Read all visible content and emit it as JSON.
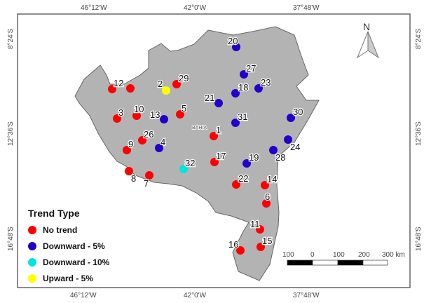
{
  "map": {
    "region_label": "BAHIA",
    "north_label": "N",
    "ticks": {
      "top": [
        "46°12'W",
        "42°0'W",
        "37°48'W"
      ],
      "bottom": [
        "46°12'W",
        "42°0'W",
        "37°48'W"
      ],
      "left": [
        "8°24'S",
        "12°36'S",
        "16°48'S"
      ],
      "right": [
        "8°24'S",
        "12°36'S",
        "16°48'S"
      ]
    },
    "scale_bar": {
      "labels": [
        "100",
        "0",
        "100",
        "200",
        "300 km"
      ]
    }
  },
  "legend": {
    "title": "Trend Type",
    "items": [
      {
        "key": "none",
        "label": "No trend",
        "color": "#ff0000"
      },
      {
        "key": "down5",
        "label": "Downward - 5%",
        "color": "#2200cc"
      },
      {
        "key": "down10",
        "label": "Downward - 10%",
        "color": "#00e5e0"
      },
      {
        "key": "up5",
        "label": "Upward - 5%",
        "color": "#ffff00"
      }
    ]
  },
  "stations": [
    {
      "id": "1",
      "trend": "none"
    },
    {
      "id": "2",
      "trend": "up5"
    },
    {
      "id": "3",
      "trend": "none"
    },
    {
      "id": "4",
      "trend": "down5"
    },
    {
      "id": "5",
      "trend": "none"
    },
    {
      "id": "6",
      "trend": "none"
    },
    {
      "id": "7",
      "trend": "none"
    },
    {
      "id": "8",
      "trend": "none"
    },
    {
      "id": "9",
      "trend": "none"
    },
    {
      "id": "10",
      "trend": "none"
    },
    {
      "id": "11",
      "trend": "none"
    },
    {
      "id": "12",
      "trend": "none"
    },
    {
      "id": "",
      "trend": "none"
    },
    {
      "id": "13",
      "trend": "down5"
    },
    {
      "id": "14",
      "trend": "none"
    },
    {
      "id": "15",
      "trend": "none"
    },
    {
      "id": "16",
      "trend": "none"
    },
    {
      "id": "17",
      "trend": "none"
    },
    {
      "id": "18",
      "trend": "down5"
    },
    {
      "id": "19",
      "trend": "down5"
    },
    {
      "id": "20",
      "trend": "down5"
    },
    {
      "id": "21",
      "trend": "down5"
    },
    {
      "id": "22",
      "trend": "none"
    },
    {
      "id": "23",
      "trend": "down5"
    },
    {
      "id": "24",
      "trend": "down5"
    },
    {
      "id": "26",
      "trend": "none"
    },
    {
      "id": "27",
      "trend": "down5"
    },
    {
      "id": "28",
      "trend": "down5"
    },
    {
      "id": "29",
      "trend": "none"
    },
    {
      "id": "30",
      "trend": "down5"
    },
    {
      "id": "31",
      "trend": "down5"
    },
    {
      "id": "32",
      "trend": "down10"
    }
  ]
}
